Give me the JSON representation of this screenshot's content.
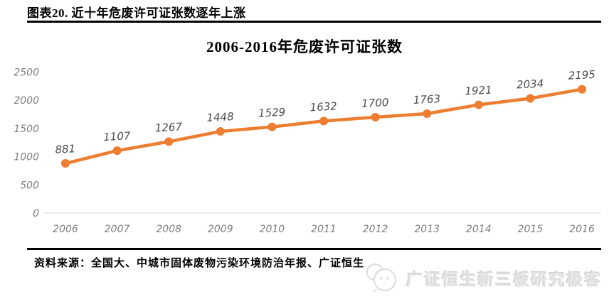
{
  "header": {
    "title": "图表20. 近十年危废许可证张数逐年上涨"
  },
  "chart_data": {
    "type": "line",
    "title": "2006-2016年危废许可证张数",
    "categories": [
      "2006",
      "2007",
      "2008",
      "2009",
      "2010",
      "2011",
      "2012",
      "2013",
      "2014",
      "2015",
      "2016"
    ],
    "values": [
      881,
      1107,
      1267,
      1448,
      1529,
      1632,
      1700,
      1763,
      1921,
      2034,
      2195
    ],
    "yticks": [
      0,
      500,
      1000,
      1500,
      2000,
      2500
    ],
    "ylim": [
      0,
      2500
    ],
    "grid": false,
    "legend_position": "none",
    "line_color": "#ED7D31",
    "marker_color": "#ED7D31",
    "axis_line_color": "#d9d9d9",
    "tick_label_color": "#7f7f7f",
    "data_label_color": "#4d4d4d",
    "xlabel": "",
    "ylabel": ""
  },
  "footer": {
    "source": "资料来源：全国大、中城市固体废物污染环境防治年报、广证恒生",
    "logo_text": "广证恒生新三板研究极客"
  },
  "icons": {
    "logo_icon": "chat-bubbles-face-icon"
  }
}
